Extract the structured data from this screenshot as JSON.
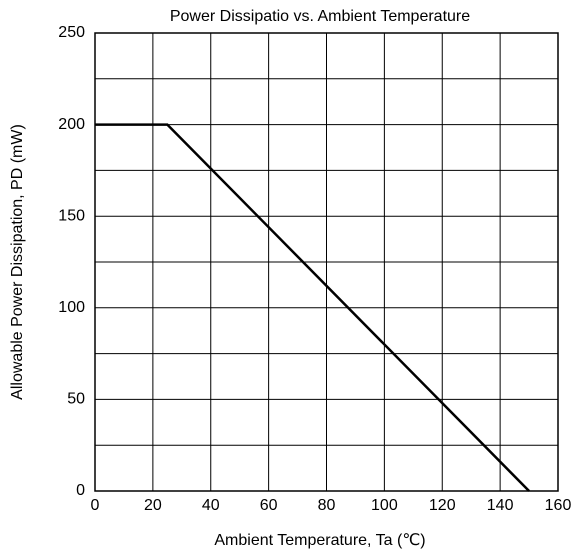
{
  "chart_data": {
    "type": "line",
    "title": "Power Dissipatio vs. Ambient Temperature",
    "x_label": "Ambient Temperature, Ta (℃)",
    "y_label": "Allowable Power Dissipation,  PD (mW)",
    "x": [
      0,
      25,
      150
    ],
    "series": [
      {
        "name": "PD",
        "color": "#000000",
        "values": [
          200,
          200,
          0
        ]
      }
    ],
    "xlim": [
      0,
      160
    ],
    "xticks": [
      0,
      20,
      40,
      60,
      80,
      100,
      120,
      140,
      160
    ],
    "ylim": [
      0,
      250
    ],
    "yticks": [
      0,
      50,
      100,
      150,
      200,
      250
    ],
    "y_minor_ticks": [
      25,
      75,
      125,
      175,
      225
    ],
    "grid": true
  }
}
